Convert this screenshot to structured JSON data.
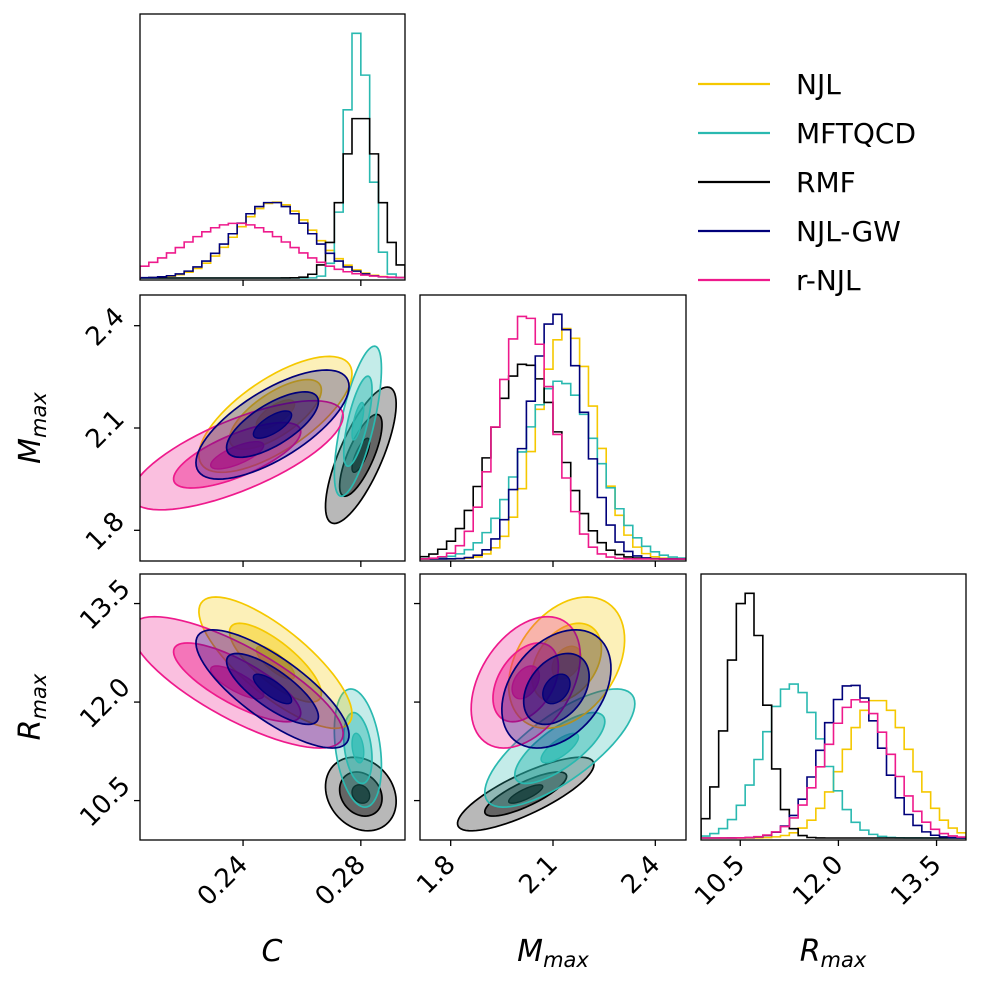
{
  "chart_data": {
    "type": "corner",
    "parameters": [
      {
        "key": "C",
        "label": "C",
        "range": [
          0.205,
          0.295
        ],
        "ticks": [
          "0.24",
          "0.28"
        ],
        "tick_values": [
          0.24,
          0.28
        ]
      },
      {
        "key": "M",
        "label": "M_max",
        "label_main": "M",
        "label_sub": "max",
        "range": [
          1.71,
          2.49
        ],
        "ticks": [
          "1.8",
          "2.1",
          "2.4"
        ],
        "tick_values": [
          1.8,
          2.1,
          2.4
        ]
      },
      {
        "key": "R",
        "label": "R_max",
        "label_main": "R",
        "label_sub": "max",
        "range": [
          9.9,
          13.95
        ],
        "ticks": [
          "10.5",
          "12.0",
          "13.5"
        ],
        "tick_values": [
          10.5,
          12.0,
          13.5
        ]
      }
    ],
    "legend": {
      "position": "top-right",
      "entries": [
        {
          "label": "NJL",
          "color": "#f5c800"
        },
        {
          "label": "MFTQCD",
          "color": "#2ab9b0"
        },
        {
          "label": "RMF",
          "color": "#000000"
        },
        {
          "label": "NJL-GW",
          "color": "#00007a"
        },
        {
          "label": "r-NJL",
          "color": "#ee1a8c"
        }
      ]
    },
    "series": [
      {
        "name": "NJL",
        "color": "#f5c800",
        "mean": [
          0.251,
          2.14,
          12.6
        ],
        "std": [
          0.013,
          0.085,
          0.5
        ],
        "corr": {
          "CM": 0.7,
          "CR": -0.78,
          "MR": 0.35
        }
      },
      {
        "name": "MFTQCD",
        "color": "#2ab9b0",
        "mean": [
          0.279,
          2.12,
          11.3
        ],
        "std": [
          0.004,
          0.11,
          0.45
        ],
        "corr": {
          "CM": 0.7,
          "CR": -0.3,
          "MR": 0.75
        }
      },
      {
        "name": "RMF",
        "color": "#000000",
        "mean": [
          0.28,
          2.02,
          10.6
        ],
        "std": [
          0.006,
          0.1,
          0.28
        ],
        "corr": {
          "CM": 0.75,
          "CR": -0.2,
          "MR": 0.8
        }
      },
      {
        "name": "NJL-GW",
        "color": "#00007a",
        "mean": [
          0.25,
          2.11,
          12.2
        ],
        "std": [
          0.013,
          0.08,
          0.45
        ],
        "corr": {
          "CM": 0.7,
          "CR": -0.78,
          "MR": 0.35
        }
      },
      {
        "name": "r-NJL",
        "color": "#ee1a8c",
        "mean": [
          0.238,
          2.02,
          12.3
        ],
        "std": [
          0.018,
          0.08,
          0.5
        ],
        "corr": {
          "CM": 0.72,
          "CR": -0.78,
          "MR": 0.4
        }
      }
    ]
  }
}
